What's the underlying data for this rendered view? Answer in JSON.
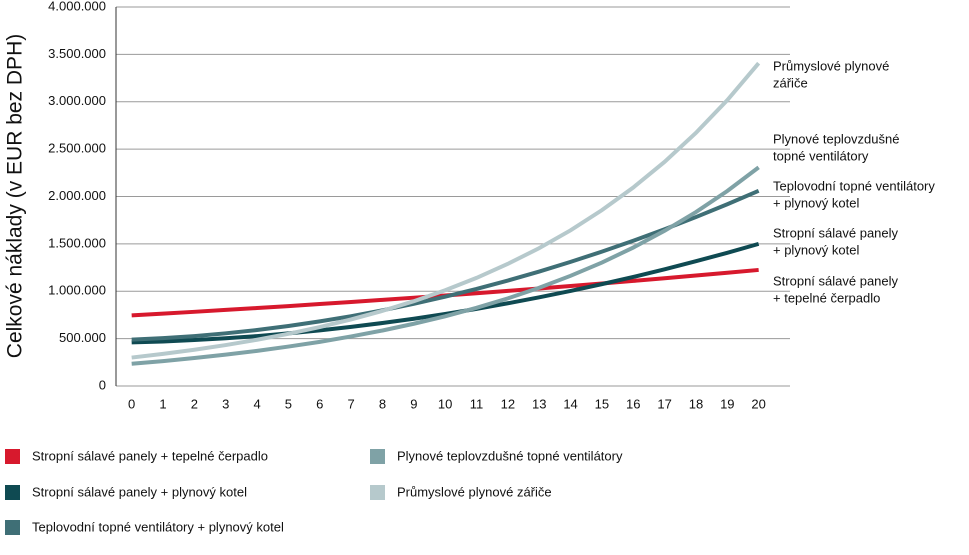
{
  "chart_data": {
    "type": "line",
    "y_label": "Celkové náklady (v EUR bez DPH)",
    "x": [
      0,
      1,
      2,
      3,
      4,
      5,
      6,
      7,
      8,
      9,
      10,
      11,
      12,
      13,
      14,
      15,
      16,
      17,
      18,
      19,
      20
    ],
    "xlim": [
      -0.5,
      21
    ],
    "xticks": [
      0,
      1,
      2,
      3,
      4,
      5,
      6,
      7,
      8,
      9,
      10,
      11,
      12,
      13,
      14,
      15,
      16,
      17,
      18,
      19,
      20
    ],
    "ylim": [
      0,
      4000000
    ],
    "yticks": [
      0,
      {
        "value": 500000,
        "label": "500.000"
      },
      {
        "value": 1000000,
        "label": "1.000.000"
      },
      {
        "value": 1500000,
        "label": "1.500.000"
      },
      {
        "value": 2000000,
        "label": "2.000.000"
      },
      {
        "value": 2500000,
        "label": "2.500.000"
      },
      {
        "value": 3000000,
        "label": "3.000.000"
      },
      {
        "value": 3500000,
        "label": "3.500.000"
      },
      {
        "value": 4000000,
        "label": "4.000.000"
      }
    ],
    "grid": true,
    "series": [
      {
        "name": "Stropní sálavé panely + tepelné čerpadlo",
        "color": "#d7192d",
        "end_label": [
          "Stropní sálavé panely",
          "+ tepelné čerpadlo"
        ],
        "values": [
          745000,
          764000,
          783000,
          803000,
          823000,
          843000,
          865000,
          886000,
          909000,
          932000,
          955000,
          979000,
          1004000,
          1029000,
          1055000,
          1082000,
          1109000,
          1137000,
          1166000,
          1195000,
          1225000
        ]
      },
      {
        "name": "Stropní sálavé panely + plynový kotel",
        "color": "#0f4a52",
        "end_label": [
          "Stropní sálavé panely",
          "+ plynový kotel"
        ],
        "values": [
          460000,
          470000,
          485000,
          504000,
          527000,
          555000,
          587000,
          624000,
          665000,
          710000,
          760000,
          814000,
          873000,
          936000,
          1003000,
          1075000,
          1151000,
          1232000,
          1317000,
          1406000,
          1500000
        ]
      },
      {
        "name": "Teplovodní topné ventilátory + plynový kotel",
        "color": "#3f6f76",
        "end_label": [
          "Teplovodní topné ventilátory",
          "+ plynový kotel"
        ],
        "values": [
          490000,
          505000,
          527000,
          556000,
          591000,
          633000,
          682000,
          737000,
          799000,
          867000,
          943000,
          1024000,
          1113000,
          1208000,
          1310000,
          1418000,
          1533000,
          1655000,
          1783000,
          1918000,
          2060000
        ]
      },
      {
        "name": "Plynové teplovzdušné topné ventilátory",
        "color": "#7fa2a6",
        "end_label": [
          "Plynové teplovzdušné",
          "topné ventilátory"
        ],
        "values": [
          235000,
          263000,
          295000,
          331000,
          371000,
          416000,
          466000,
          523000,
          586000,
          657000,
          736000,
          825000,
          925000,
          1037000,
          1163000,
          1303000,
          1461000,
          1638000,
          1836000,
          2058000,
          2307000
        ]
      },
      {
        "name": "Průmyslové plynové zářiče",
        "color": "#b6c9cc",
        "end_label": [
          "Průmyslové plynové",
          "zářiče"
        ],
        "values": [
          300000,
          339000,
          383000,
          432000,
          488000,
          551000,
          622000,
          702000,
          793000,
          895000,
          1011000,
          1141000,
          1289000,
          1455000,
          1643000,
          1856000,
          2095000,
          2366000,
          2672000,
          3017000,
          3407000
        ]
      }
    ]
  }
}
